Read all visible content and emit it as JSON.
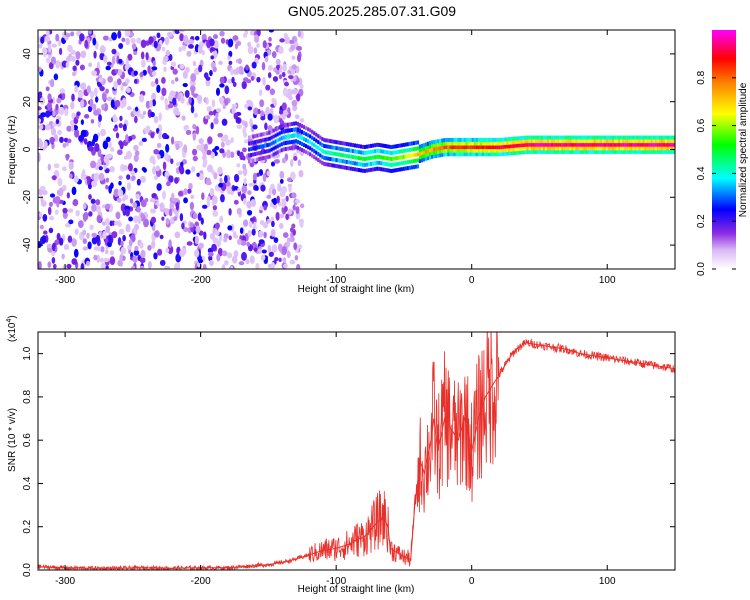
{
  "title": "GN05.2025.285.07.31.G09",
  "chart_data": [
    {
      "type": "heatmap",
      "title": "GN05.2025.285.07.31.G09",
      "xlabel": "Height of straight line (km)",
      "ylabel": "Frequency (Hz)",
      "xlim": [
        -320,
        150
      ],
      "ylim": [
        -50,
        50
      ],
      "x_ticks": [
        -300,
        -200,
        -100,
        0,
        100
      ],
      "y_ticks": [
        -40,
        -20,
        0,
        20,
        40
      ],
      "grid": false,
      "noise_region_x": [
        -320,
        -125
      ],
      "signal_track": {
        "x": [
          -165,
          -150,
          -140,
          -130,
          -120,
          -110,
          -100,
          -90,
          -80,
          -70,
          -60,
          -50,
          -40,
          -30,
          -20,
          -10,
          0,
          20,
          40,
          60,
          80,
          100,
          120,
          150
        ],
        "y": [
          0,
          2,
          5,
          6,
          3,
          -1,
          -2,
          -3,
          -4,
          -3,
          -4,
          -3,
          -2,
          0,
          1,
          1,
          1,
          1,
          2,
          2,
          2,
          2,
          2,
          2
        ],
        "amplitude": [
          0.25,
          0.3,
          0.35,
          0.4,
          0.35,
          0.4,
          0.45,
          0.45,
          0.5,
          0.5,
          0.55,
          0.6,
          0.7,
          0.75,
          0.8,
          0.85,
          0.85,
          0.9,
          0.95,
          0.95,
          0.95,
          0.95,
          0.95,
          0.95
        ]
      },
      "colorbar": {
        "label": "Normalized spectral amplitude",
        "range": [
          0,
          1
        ],
        "ticks": [
          0.0,
          0.2,
          0.4,
          0.6,
          0.8
        ],
        "colors": [
          "#ffffff",
          "#d9b8f5",
          "#8a2be2",
          "#0000ff",
          "#00ffff",
          "#00ff00",
          "#ffff00",
          "#ff8000",
          "#ff0000",
          "#ff00ff"
        ]
      }
    },
    {
      "type": "line",
      "xlabel": "Height of straight line (km)",
      "ylabel": "SNR (10 * v/v)",
      "y_multiplier_label": "(x10",
      "y_multiplier_exp": "4",
      "y_multiplier_close": ")",
      "xlim": [
        -320,
        150
      ],
      "ylim": [
        0,
        1.1
      ],
      "x_ticks": [
        -300,
        -200,
        -100,
        0,
        100
      ],
      "y_ticks": [
        0.0,
        0.2,
        0.4,
        0.6,
        0.8,
        1.0
      ],
      "color": "#e8302a",
      "series": [
        {
          "x": [
            -320,
            -300,
            -280,
            -260,
            -240,
            -220,
            -200,
            -180,
            -160,
            -150,
            -140,
            -130,
            -120,
            -110,
            -100,
            -90,
            -85,
            -80,
            -75,
            -70,
            -65,
            -62,
            -60,
            -55,
            -50,
            -45,
            -42,
            -40,
            -38,
            -35,
            -30,
            -28,
            -25,
            -20,
            -15,
            -10,
            -5,
            0,
            5,
            10,
            15,
            20,
            25,
            30,
            35,
            40,
            50,
            60,
            70,
            80,
            90,
            100,
            110,
            120,
            130,
            140,
            150
          ],
          "y": [
            0.015,
            0.01,
            0.008,
            0.008,
            0.01,
            0.008,
            0.01,
            0.01,
            0.02,
            0.025,
            0.035,
            0.05,
            0.07,
            0.09,
            0.1,
            0.12,
            0.14,
            0.15,
            0.18,
            0.22,
            0.25,
            0.2,
            0.1,
            0.08,
            0.06,
            0.05,
            0.3,
            0.4,
            0.5,
            0.45,
            0.6,
            0.7,
            0.55,
            0.7,
            0.65,
            0.6,
            0.7,
            0.55,
            0.7,
            0.8,
            0.85,
            0.9,
            0.95,
            1.0,
            1.03,
            1.05,
            1.04,
            1.03,
            1.02,
            1.0,
            0.99,
            0.98,
            0.97,
            0.96,
            0.95,
            0.94,
            0.93
          ]
        }
      ]
    }
  ]
}
